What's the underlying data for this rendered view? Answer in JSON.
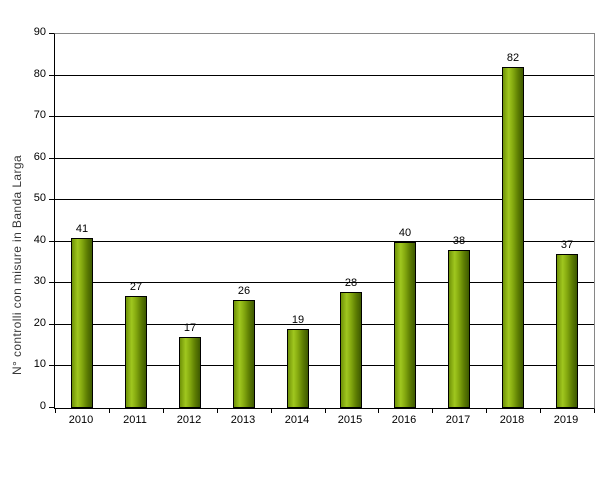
{
  "chart_data": {
    "type": "bar",
    "title": "",
    "xlabel": "",
    "ylabel": "N° controlli con misure in Banda Larga",
    "categories": [
      "2010",
      "2011",
      "2012",
      "2013",
      "2014",
      "2015",
      "2016",
      "2017",
      "2018",
      "2019"
    ],
    "values": [
      41,
      27,
      17,
      26,
      19,
      28,
      40,
      38,
      82,
      37
    ],
    "ylim": [
      0,
      90
    ],
    "ytick_step": 10,
    "grid": true,
    "legend": "none",
    "data_labels_shown": true,
    "colors": {
      "bar_gradient": [
        "#6f9208",
        "#a0c71f",
        "#84a90f",
        "#5d7d03",
        "#3e5a00"
      ],
      "bar_border": "#000000",
      "gridline": "#000000",
      "plot_border": "#868686",
      "axis": "#000000",
      "text": "#000000",
      "background": "#ffffff"
    }
  },
  "layout_note": "vertical bar chart, no title, y-axis title rotated on left"
}
